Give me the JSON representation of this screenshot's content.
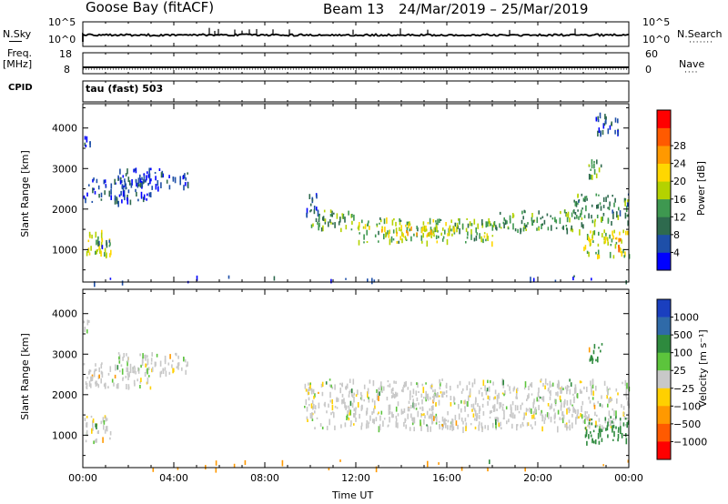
{
  "header": {
    "station": "Goose Bay (fitACF)",
    "beam": "Beam 13",
    "date_range": "24/Mar/2019 – 25/Mar/2019"
  },
  "strip_labels": {
    "nsky": "N.Sky",
    "nsearch": "N.Search",
    "freq": "Freq.",
    "mhz": "[MHz]",
    "nave": "Nave",
    "cpid": "CPID",
    "cpid_value": "tau (fast) 503",
    "nsky_ticks": [
      "10^5",
      "10^0"
    ],
    "nsearch_ticks": [
      "10^5",
      "10^0"
    ],
    "freq_ticks": [
      "18",
      "8"
    ],
    "nave_ticks": [
      "60",
      "0"
    ]
  },
  "chart_data": [
    {
      "type": "heatmap",
      "title": "",
      "xlabel": "",
      "ylabel": "Slant Range [km]",
      "x_tick_labels": [
        "00:00",
        "04:00",
        "08:00",
        "12:00",
        "16:00",
        "20:00",
        "00:00"
      ],
      "x_ticks_hours": [
        0,
        4,
        8,
        12,
        16,
        20,
        24
      ],
      "xlim_hours": [
        0,
        24
      ],
      "ylim": [
        200,
        4600
      ],
      "y_ticks": [
        1000,
        2000,
        3000,
        4000
      ],
      "y_tick_labels": [
        "1000",
        "2000",
        "3000",
        "4000"
      ],
      "colorbar": {
        "label": "Power [dB]",
        "ticks": [
          "4",
          "8",
          "12",
          "16",
          "20",
          "24",
          "28"
        ],
        "colors": [
          "#0000ff",
          "#1e4fa8",
          "#2e6a4e",
          "#3e9850",
          "#b4d200",
          "#ffd700",
          "#ff9900",
          "#ff5a00",
          "#ff0000"
        ]
      },
      "echo_regions": [
        {
          "t_start": 0.0,
          "t_end": 0.3,
          "range_start": 3500,
          "range_end": 3900,
          "value": 6
        },
        {
          "t_start": 0.0,
          "t_end": 3.0,
          "range_start": 2200,
          "range_end": 2800,
          "value": 6
        },
        {
          "t_start": 1.5,
          "t_end": 4.6,
          "range_start": 2550,
          "range_end": 3050,
          "value": 5
        },
        {
          "t_start": 0.0,
          "t_end": 1.2,
          "range_start": 850,
          "range_end": 1500,
          "value": 18
        },
        {
          "t_start": 0.6,
          "t_end": 1.3,
          "range_start": 1100,
          "range_end": 1250,
          "value": 6
        },
        {
          "t_start": 9.7,
          "t_end": 10.4,
          "range_start": 1900,
          "range_end": 2400,
          "value": 6
        },
        {
          "t_start": 10.0,
          "t_end": 12.0,
          "range_start": 1500,
          "range_end": 2000,
          "value": 14
        },
        {
          "t_start": 12.0,
          "t_end": 18.0,
          "range_start": 1200,
          "range_end": 1800,
          "value": 16
        },
        {
          "t_start": 13.0,
          "t_end": 16.5,
          "range_start": 1400,
          "range_end": 1600,
          "value": 21
        },
        {
          "t_start": 18.0,
          "t_end": 22.0,
          "range_start": 1500,
          "range_end": 2000,
          "value": 14
        },
        {
          "t_start": 21.5,
          "t_end": 24.0,
          "range_start": 1700,
          "range_end": 2400,
          "value": 12
        },
        {
          "t_start": 22.0,
          "t_end": 24.0,
          "range_start": 850,
          "range_end": 1500,
          "value": 18
        },
        {
          "t_start": 23.3,
          "t_end": 23.7,
          "range_start": 1000,
          "range_end": 1300,
          "value": 26
        },
        {
          "t_start": 22.2,
          "t_end": 22.9,
          "range_start": 2800,
          "range_end": 3300,
          "value": 14
        },
        {
          "t_start": 22.5,
          "t_end": 23.5,
          "range_start": 3900,
          "range_end": 4500,
          "value": 6
        },
        {
          "t_start": 0.0,
          "t_end": 24.0,
          "range_start": 200,
          "range_end": 400,
          "value": 5
        }
      ]
    },
    {
      "type": "heatmap",
      "title": "",
      "xlabel": "Time UT",
      "ylabel": "Slant Range [km]",
      "x_tick_labels": [
        "00:00",
        "04:00",
        "08:00",
        "12:00",
        "16:00",
        "20:00",
        "00:00"
      ],
      "x_ticks_hours": [
        0,
        4,
        8,
        12,
        16,
        20,
        24
      ],
      "xlim_hours": [
        0,
        24
      ],
      "ylim": [
        200,
        4600
      ],
      "y_ticks": [
        1000,
        2000,
        3000,
        4000
      ],
      "y_tick_labels": [
        "1000",
        "2000",
        "3000",
        "4000"
      ],
      "colorbar": {
        "label": "Velocity [m s⁻¹]",
        "ticks": [
          "1000",
          "500",
          "100",
          "25",
          "−25",
          "−100",
          "−500",
          "−1000"
        ],
        "colors": [
          "#1a3fbf",
          "#2f6aa8",
          "#2e8a3e",
          "#5cc43c",
          "#c8c8c8",
          "#ffd000",
          "#ff9900",
          "#ff5a00",
          "#ff0000"
        ]
      },
      "echo_regions": [
        {
          "t_start": 0.0,
          "t_end": 0.3,
          "range_start": 3500,
          "range_end": 3900,
          "value": 0
        },
        {
          "t_start": 0.0,
          "t_end": 3.0,
          "range_start": 2200,
          "range_end": 2800,
          "value": 0
        },
        {
          "t_start": 1.5,
          "t_end": 4.6,
          "range_start": 2550,
          "range_end": 3050,
          "value": 0
        },
        {
          "t_start": 0.0,
          "t_end": 1.2,
          "range_start": 850,
          "range_end": 1500,
          "value": 0
        },
        {
          "t_start": 9.7,
          "t_end": 24.0,
          "range_start": 1200,
          "range_end": 2400,
          "value": 0
        },
        {
          "t_start": 22.0,
          "t_end": 24.0,
          "range_start": 850,
          "range_end": 1500,
          "value": 150
        },
        {
          "t_start": 22.2,
          "t_end": 22.9,
          "range_start": 2800,
          "range_end": 3300,
          "value": 150
        },
        {
          "t_start": 0.0,
          "t_end": 24.0,
          "range_start": 200,
          "range_end": 400,
          "value": -150
        }
      ]
    }
  ]
}
